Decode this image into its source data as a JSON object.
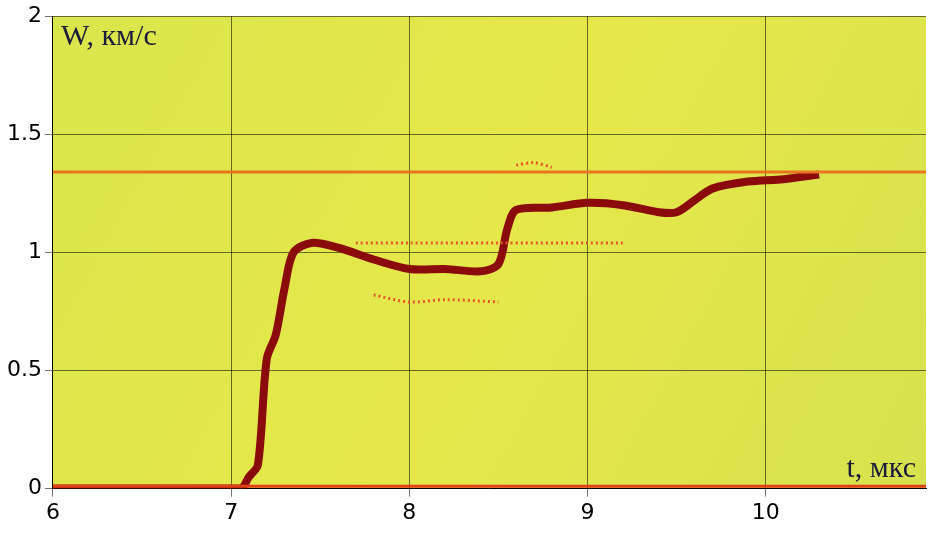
{
  "chart_data": {
    "type": "line",
    "y_label": "W, км/с",
    "x_label": "t, мкс",
    "xlim": [
      6,
      10.9
    ],
    "xticks": [
      6,
      7,
      8,
      9,
      10
    ],
    "ylim": [
      0,
      2
    ],
    "yticks": [
      0,
      0.5,
      1,
      1.5,
      2
    ],
    "grid": true,
    "series": [
      {
        "color": "#e8761e",
        "line_style": "solid",
        "x": [
          6,
          10.9
        ],
        "values": [
          1.34,
          1.34
        ]
      },
      {
        "color": "#e0401a",
        "line_style": "solid",
        "x": [
          6,
          10.9
        ],
        "values": [
          0.01,
          0.01
        ]
      },
      {
        "color": "#e8562a",
        "line_style": "dotted",
        "x": [
          7.7,
          8.0,
          8.5,
          9.0,
          9.2
        ],
        "values": [
          1.04,
          1.04,
          1.04,
          1.04,
          1.04
        ]
      },
      {
        "color": "#e8562a",
        "line_style": "dotted",
        "x": [
          7.8,
          8.0,
          8.2,
          8.5
        ],
        "values": [
          0.82,
          0.79,
          0.8,
          0.79
        ]
      },
      {
        "color": "#e8562a",
        "line_style": "dotted",
        "x": [
          8.6,
          8.7,
          8.8
        ],
        "values": [
          1.37,
          1.38,
          1.36
        ]
      },
      {
        "color": "#8b0a0a",
        "line_style": "bold",
        "x": [
          6,
          7.05,
          7.1,
          7.15,
          7.2,
          7.25,
          7.3,
          7.35,
          7.45,
          7.6,
          7.8,
          8.0,
          8.2,
          8.4,
          8.5,
          8.55,
          8.6,
          8.8,
          9.0,
          9.2,
          9.4,
          9.5,
          9.6,
          9.7,
          9.9,
          10.1,
          10.3
        ],
        "values": [
          0,
          0,
          0.05,
          0.1,
          0.55,
          0.65,
          0.85,
          1.0,
          1.04,
          1.02,
          0.97,
          0.93,
          0.93,
          0.92,
          0.95,
          1.1,
          1.18,
          1.19,
          1.21,
          1.2,
          1.17,
          1.17,
          1.22,
          1.27,
          1.3,
          1.31,
          1.33
        ]
      }
    ]
  }
}
